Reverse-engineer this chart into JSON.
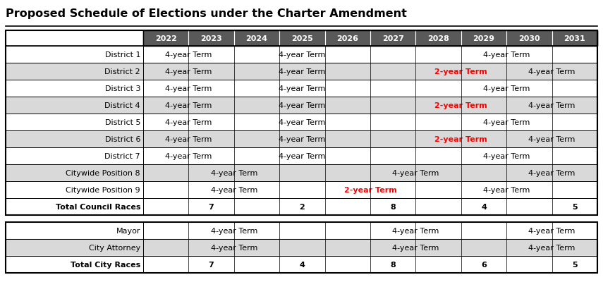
{
  "title": "Proposed Schedule of Elections under the Charter Amendment",
  "years": [
    "2022",
    "2023",
    "2024",
    "2025",
    "2026",
    "2027",
    "2028",
    "2029",
    "2030",
    "2031"
  ],
  "header_bg": "#595959",
  "header_fg": "#ffffff",
  "council_rows": [
    {
      "label": "District 1",
      "bg": "#ffffff",
      "label_bold": false,
      "cells": [
        {
          "cs": 0,
          "ce": 1,
          "text": "4-year Term",
          "color": "#000000",
          "bold": false
        },
        {
          "cs": 2,
          "ce": 4,
          "text": "4-year Term",
          "color": "#000000",
          "bold": false
        },
        {
          "cs": 5,
          "ce": 5,
          "text": "",
          "color": "#000000",
          "bold": false
        },
        {
          "cs": 6,
          "ce": 9,
          "text": "4-year Term",
          "color": "#000000",
          "bold": false
        }
      ]
    },
    {
      "label": "District 2",
      "bg": "#d9d9d9",
      "label_bold": false,
      "cells": [
        {
          "cs": 0,
          "ce": 1,
          "text": "4-year Term",
          "color": "#000000",
          "bold": false
        },
        {
          "cs": 2,
          "ce": 4,
          "text": "4-year Term",
          "color": "#000000",
          "bold": false
        },
        {
          "cs": 5,
          "ce": 5,
          "text": "",
          "color": "#000000",
          "bold": false
        },
        {
          "cs": 6,
          "ce": 7,
          "text": "2-year Term",
          "color": "#ff0000",
          "bold": true
        },
        {
          "cs": 8,
          "ce": 9,
          "text": "4-year Term",
          "color": "#000000",
          "bold": false
        }
      ]
    },
    {
      "label": "District 3",
      "bg": "#ffffff",
      "label_bold": false,
      "cells": [
        {
          "cs": 0,
          "ce": 1,
          "text": "4-year Term",
          "color": "#000000",
          "bold": false
        },
        {
          "cs": 2,
          "ce": 4,
          "text": "4-year Term",
          "color": "#000000",
          "bold": false
        },
        {
          "cs": 5,
          "ce": 5,
          "text": "",
          "color": "#000000",
          "bold": false
        },
        {
          "cs": 6,
          "ce": 9,
          "text": "4-year Term",
          "color": "#000000",
          "bold": false
        }
      ]
    },
    {
      "label": "District 4",
      "bg": "#d9d9d9",
      "label_bold": false,
      "cells": [
        {
          "cs": 0,
          "ce": 1,
          "text": "4-year Term",
          "color": "#000000",
          "bold": false
        },
        {
          "cs": 2,
          "ce": 4,
          "text": "4-year Term",
          "color": "#000000",
          "bold": false
        },
        {
          "cs": 5,
          "ce": 5,
          "text": "",
          "color": "#000000",
          "bold": false
        },
        {
          "cs": 6,
          "ce": 7,
          "text": "2-year Term",
          "color": "#ff0000",
          "bold": true
        },
        {
          "cs": 8,
          "ce": 9,
          "text": "4-year Term",
          "color": "#000000",
          "bold": false
        }
      ]
    },
    {
      "label": "District 5",
      "bg": "#ffffff",
      "label_bold": false,
      "cells": [
        {
          "cs": 0,
          "ce": 1,
          "text": "4-year Term",
          "color": "#000000",
          "bold": false
        },
        {
          "cs": 2,
          "ce": 4,
          "text": "4-year Term",
          "color": "#000000",
          "bold": false
        },
        {
          "cs": 5,
          "ce": 5,
          "text": "",
          "color": "#000000",
          "bold": false
        },
        {
          "cs": 6,
          "ce": 9,
          "text": "4-year Term",
          "color": "#000000",
          "bold": false
        }
      ]
    },
    {
      "label": "District 6",
      "bg": "#d9d9d9",
      "label_bold": false,
      "cells": [
        {
          "cs": 0,
          "ce": 1,
          "text": "4-year Term",
          "color": "#000000",
          "bold": false
        },
        {
          "cs": 2,
          "ce": 4,
          "text": "4-year Term",
          "color": "#000000",
          "bold": false
        },
        {
          "cs": 5,
          "ce": 5,
          "text": "",
          "color": "#000000",
          "bold": false
        },
        {
          "cs": 6,
          "ce": 7,
          "text": "2-year Term",
          "color": "#ff0000",
          "bold": true
        },
        {
          "cs": 8,
          "ce": 9,
          "text": "4-year Term",
          "color": "#000000",
          "bold": false
        }
      ]
    },
    {
      "label": "District 7",
      "bg": "#ffffff",
      "label_bold": false,
      "cells": [
        {
          "cs": 0,
          "ce": 1,
          "text": "4-year Term",
          "color": "#000000",
          "bold": false
        },
        {
          "cs": 2,
          "ce": 4,
          "text": "4-year Term",
          "color": "#000000",
          "bold": false
        },
        {
          "cs": 5,
          "ce": 5,
          "text": "",
          "color": "#000000",
          "bold": false
        },
        {
          "cs": 6,
          "ce": 9,
          "text": "4-year Term",
          "color": "#000000",
          "bold": false
        }
      ]
    },
    {
      "label": "Citywide Position 8",
      "bg": "#d9d9d9",
      "label_bold": false,
      "cells": [
        {
          "cs": 0,
          "ce": 3,
          "text": "4-year Term",
          "color": "#000000",
          "bold": false
        },
        {
          "cs": 4,
          "ce": 7,
          "text": "4-year Term",
          "color": "#000000",
          "bold": false
        },
        {
          "cs": 8,
          "ce": 9,
          "text": "4-year Term",
          "color": "#000000",
          "bold": false
        }
      ]
    },
    {
      "label": "Citywide Position 9",
      "bg": "#ffffff",
      "label_bold": false,
      "cells": [
        {
          "cs": 0,
          "ce": 3,
          "text": "4-year Term",
          "color": "#000000",
          "bold": false
        },
        {
          "cs": 4,
          "ce": 5,
          "text": "2-year Term",
          "color": "#ff0000",
          "bold": true
        },
        {
          "cs": 6,
          "ce": 9,
          "text": "4-year Term",
          "color": "#000000",
          "bold": false
        }
      ]
    },
    {
      "label": "Total Council Races",
      "bg": "#ffffff",
      "label_bold": true,
      "cells": [
        {
          "cs": 0,
          "ce": 0,
          "text": "",
          "color": "#000000",
          "bold": false
        },
        {
          "cs": 1,
          "ce": 1,
          "text": "7",
          "color": "#000000",
          "bold": true
        },
        {
          "cs": 2,
          "ce": 2,
          "text": "",
          "color": "#000000",
          "bold": false
        },
        {
          "cs": 3,
          "ce": 3,
          "text": "2",
          "color": "#000000",
          "bold": true
        },
        {
          "cs": 4,
          "ce": 4,
          "text": "",
          "color": "#000000",
          "bold": false
        },
        {
          "cs": 5,
          "ce": 5,
          "text": "8",
          "color": "#000000",
          "bold": true
        },
        {
          "cs": 6,
          "ce": 6,
          "text": "",
          "color": "#000000",
          "bold": false
        },
        {
          "cs": 7,
          "ce": 7,
          "text": "4",
          "color": "#000000",
          "bold": true
        },
        {
          "cs": 8,
          "ce": 8,
          "text": "",
          "color": "#000000",
          "bold": false
        },
        {
          "cs": 9,
          "ce": 9,
          "text": "5",
          "color": "#000000",
          "bold": true
        }
      ]
    }
  ],
  "city_rows": [
    {
      "label": "Mayor",
      "bg": "#ffffff",
      "label_bold": false,
      "cells": [
        {
          "cs": 0,
          "ce": 3,
          "text": "4-year Term",
          "color": "#000000",
          "bold": false
        },
        {
          "cs": 4,
          "ce": 7,
          "text": "4-year Term",
          "color": "#000000",
          "bold": false
        },
        {
          "cs": 8,
          "ce": 9,
          "text": "4-year Term",
          "color": "#000000",
          "bold": false
        }
      ]
    },
    {
      "label": "City Attorney",
      "bg": "#d9d9d9",
      "label_bold": false,
      "cells": [
        {
          "cs": 0,
          "ce": 3,
          "text": "4-year Term",
          "color": "#000000",
          "bold": false
        },
        {
          "cs": 4,
          "ce": 7,
          "text": "4-year Term",
          "color": "#000000",
          "bold": false
        },
        {
          "cs": 8,
          "ce": 9,
          "text": "4-year Term",
          "color": "#000000",
          "bold": false
        }
      ]
    },
    {
      "label": "Total City Races",
      "bg": "#ffffff",
      "label_bold": true,
      "cells": [
        {
          "cs": 0,
          "ce": 0,
          "text": "",
          "color": "#000000",
          "bold": false
        },
        {
          "cs": 1,
          "ce": 1,
          "text": "7",
          "color": "#000000",
          "bold": true
        },
        {
          "cs": 2,
          "ce": 2,
          "text": "",
          "color": "#000000",
          "bold": false
        },
        {
          "cs": 3,
          "ce": 3,
          "text": "4",
          "color": "#000000",
          "bold": true
        },
        {
          "cs": 4,
          "ce": 4,
          "text": "",
          "color": "#000000",
          "bold": false
        },
        {
          "cs": 5,
          "ce": 5,
          "text": "8",
          "color": "#000000",
          "bold": true
        },
        {
          "cs": 6,
          "ce": 6,
          "text": "",
          "color": "#000000",
          "bold": false
        },
        {
          "cs": 7,
          "ce": 7,
          "text": "6",
          "color": "#000000",
          "bold": true
        },
        {
          "cs": 8,
          "ce": 8,
          "text": "",
          "color": "#000000",
          "bold": false
        },
        {
          "cs": 9,
          "ce": 9,
          "text": "5",
          "color": "#000000",
          "bold": true
        }
      ]
    }
  ]
}
